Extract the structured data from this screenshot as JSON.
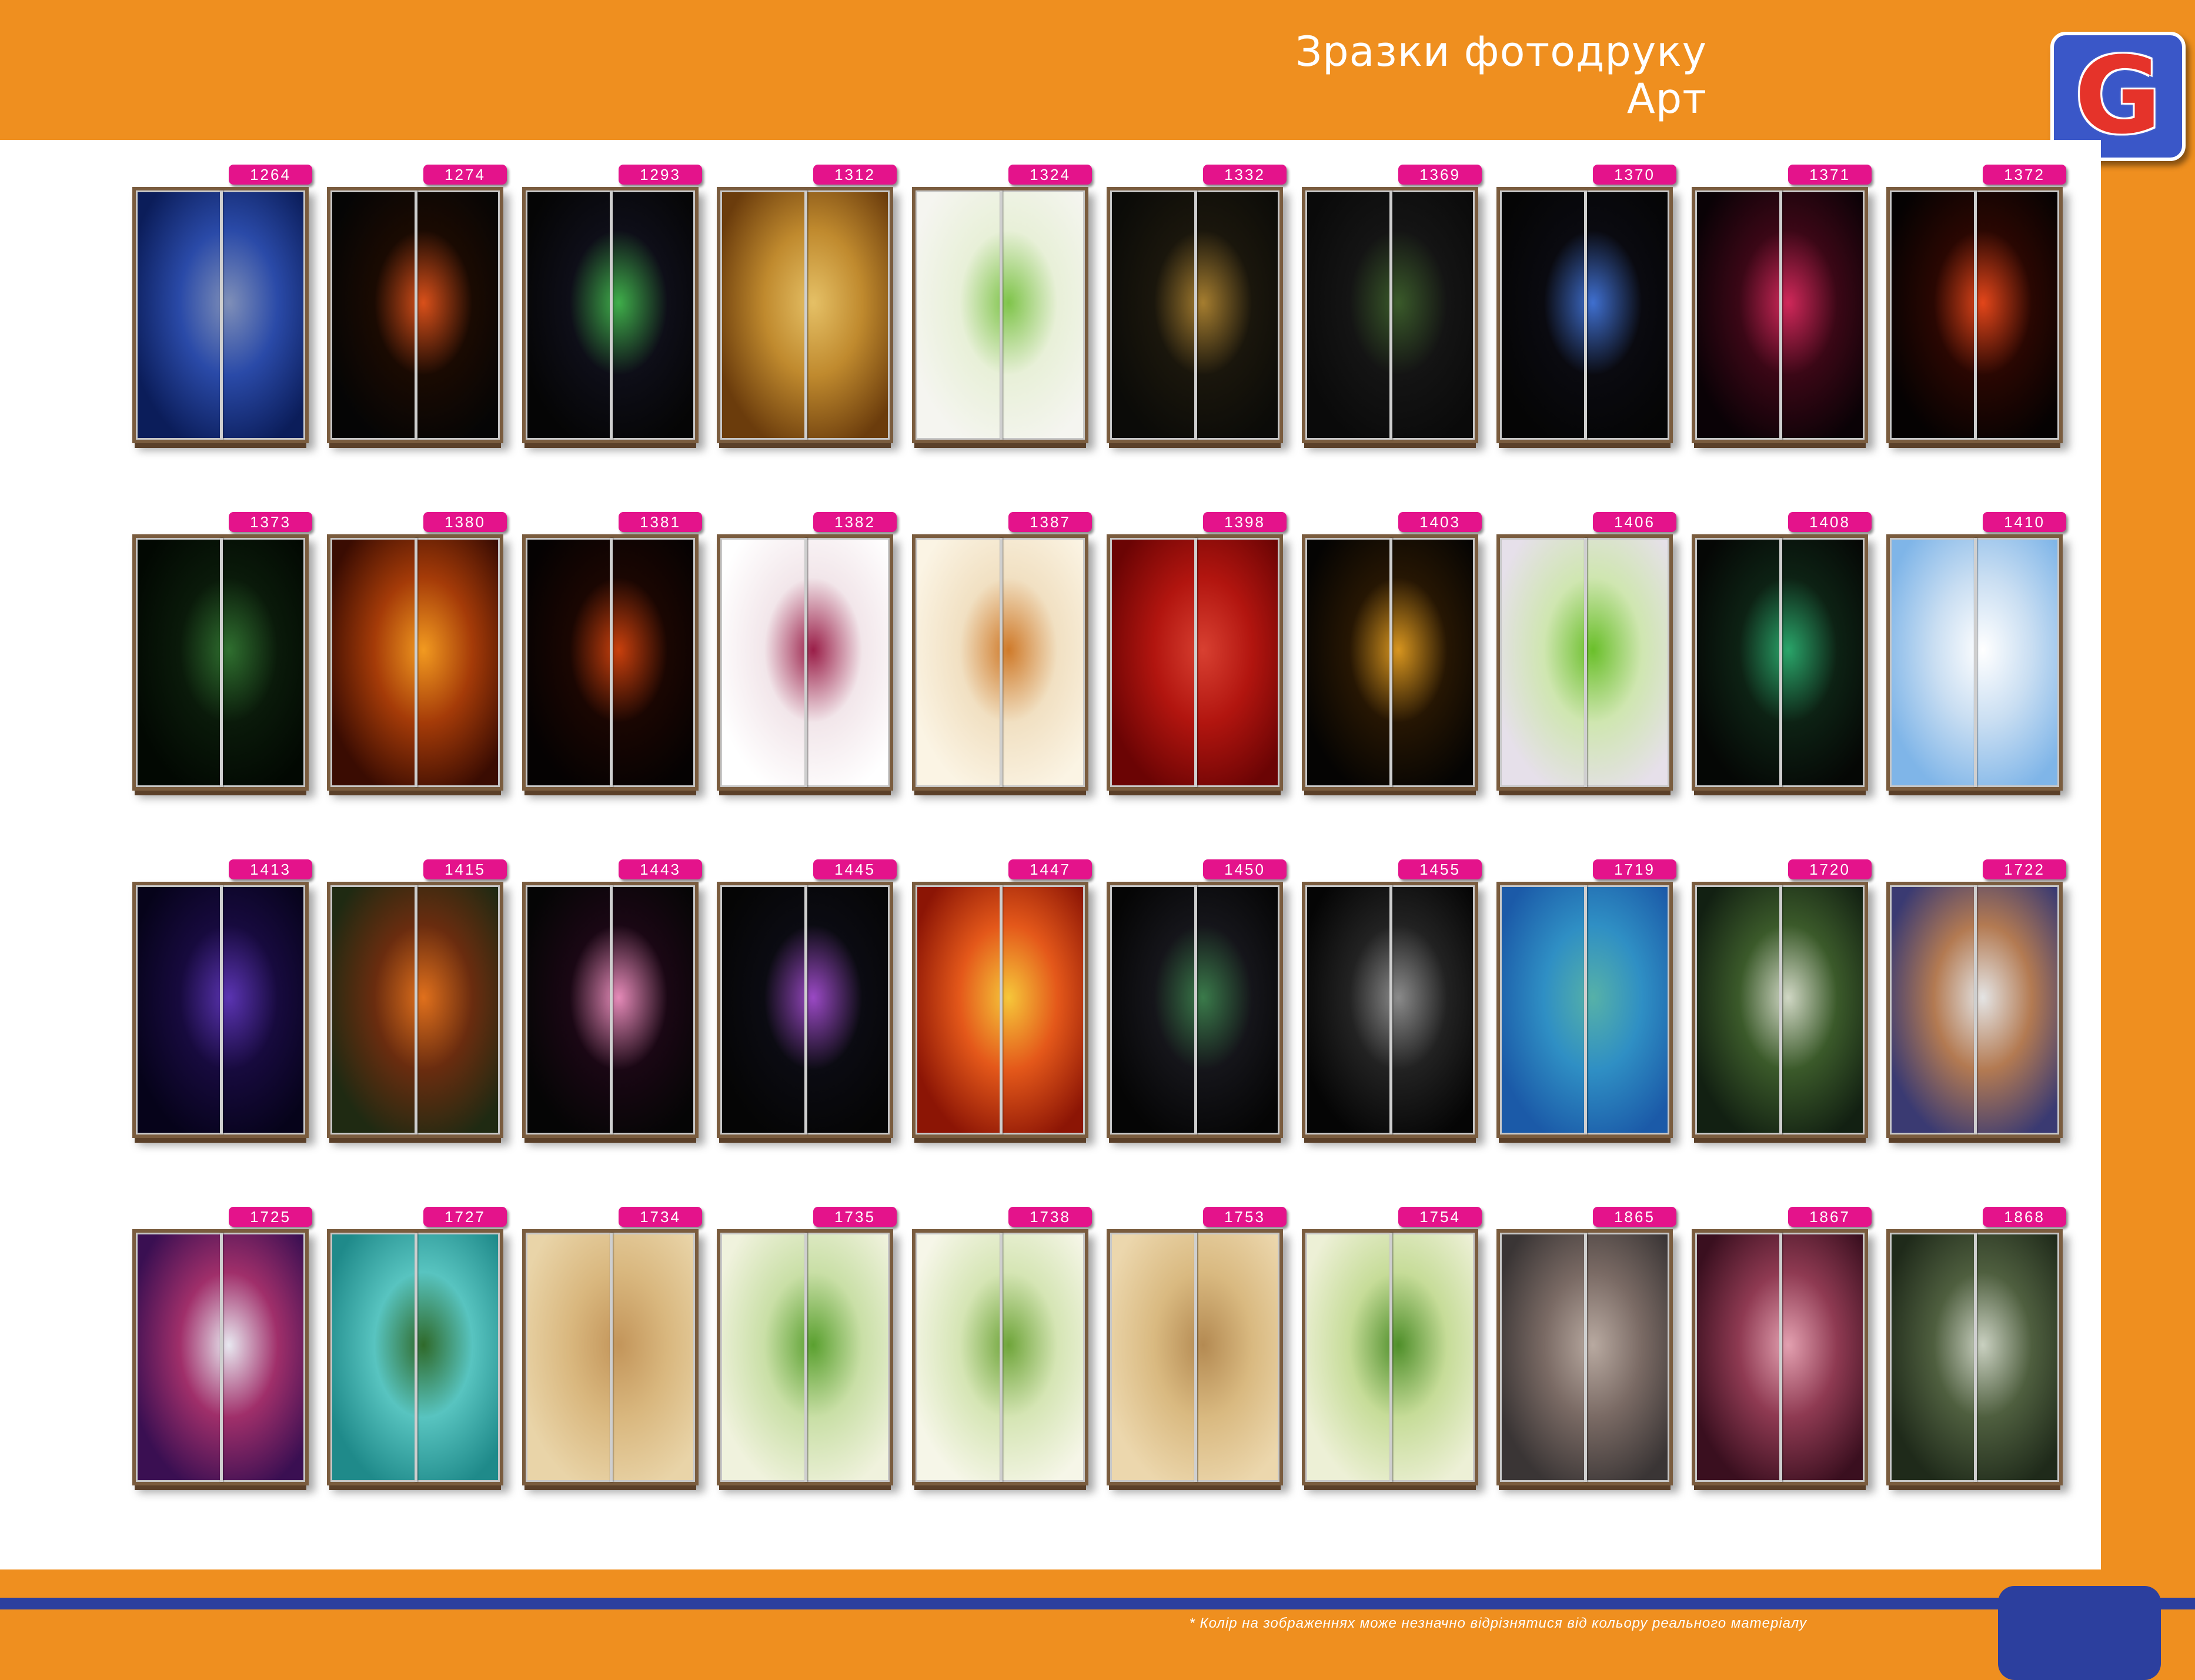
{
  "header": {
    "title_line1": "Зразки фотодруку",
    "title_line2": "Арт"
  },
  "logo": {
    "letter": "G",
    "color": "#e5332a",
    "background": "#3a57c8"
  },
  "colors": {
    "orange": "#ef8f1f",
    "blue": "#2c3f9e",
    "tag_pink": "#e4138b",
    "frame": "#7a5c3e"
  },
  "footnote": "* Колір на зображеннях може незначно відрізнятися від кольору реального матеріалу",
  "catalog": [
    {
      "code": "1264",
      "colors": [
        "#0b1d5a",
        "#2a4aa8",
        "#7f8fb8"
      ]
    },
    {
      "code": "1274",
      "colors": [
        "#050505",
        "#1a0a02",
        "#d9501a"
      ]
    },
    {
      "code": "1293",
      "colors": [
        "#050505",
        "#0e0e18",
        "#3fae4a"
      ]
    },
    {
      "code": "1312",
      "colors": [
        "#6b3c0c",
        "#c08a2e",
        "#e5c066"
      ]
    },
    {
      "code": "1324",
      "colors": [
        "#f5f5f0",
        "#e8f0d8",
        "#7fc44a"
      ]
    },
    {
      "code": "1332",
      "colors": [
        "#0b0b08",
        "#1a160c",
        "#a57d2f"
      ]
    },
    {
      "code": "1369",
      "colors": [
        "#0a0a0a",
        "#141414",
        "#3a5a2a"
      ]
    },
    {
      "code": "1370",
      "colors": [
        "#050505",
        "#0a0a10",
        "#3f6fcf"
      ]
    },
    {
      "code": "1371",
      "colors": [
        "#0a0206",
        "#3b0716",
        "#d0285a"
      ]
    },
    {
      "code": "1372",
      "colors": [
        "#050202",
        "#2a0702",
        "#e3461a"
      ]
    },
    {
      "code": "1373",
      "colors": [
        "#020802",
        "#0a1a0a",
        "#2f6f2f"
      ]
    },
    {
      "code": "1380",
      "colors": [
        "#3a0c02",
        "#a53b08",
        "#f29a20"
      ]
    },
    {
      "code": "1381",
      "colors": [
        "#050202",
        "#1a0602",
        "#c9400d"
      ]
    },
    {
      "code": "1382",
      "colors": [
        "#ffffff",
        "#f2e6ea",
        "#9a1e48"
      ]
    },
    {
      "code": "1387",
      "colors": [
        "#fbf4e4",
        "#f1e0c2",
        "#cf7a2a"
      ]
    },
    {
      "code": "1398",
      "colors": [
        "#6b0404",
        "#b2150f",
        "#d84031"
      ]
    },
    {
      "code": "1403",
      "colors": [
        "#050403",
        "#261603",
        "#d7951f"
      ]
    },
    {
      "code": "1406",
      "colors": [
        "#e6e0ea",
        "#cfe6b0",
        "#6abf2a"
      ]
    },
    {
      "code": "1408",
      "colors": [
        "#050705",
        "#0d2214",
        "#2aa56a"
      ]
    },
    {
      "code": "1410",
      "colors": [
        "#7fb5e8",
        "#c9def2",
        "#ffffff"
      ]
    },
    {
      "code": "1413",
      "colors": [
        "#06031a",
        "#170a3e",
        "#5b34b2"
      ]
    },
    {
      "code": "1415",
      "colors": [
        "#1f2a12",
        "#6a2c0f",
        "#e0701c"
      ]
    },
    {
      "code": "1443",
      "colors": [
        "#050505",
        "#1a0714",
        "#e58ab8"
      ]
    },
    {
      "code": "1445",
      "colors": [
        "#050505",
        "#0b0b12",
        "#9a49c4"
      ]
    },
    {
      "code": "1447",
      "colors": [
        "#8c1505",
        "#e4581a",
        "#f6c73a"
      ]
    },
    {
      "code": "1450",
      "colors": [
        "#050505",
        "#15151a",
        "#3a7a4a"
      ]
    },
    {
      "code": "1455",
      "colors": [
        "#050505",
        "#222222",
        "#8a8a8a"
      ]
    },
    {
      "code": "1719",
      "colors": [
        "#1b5aa8",
        "#2f8fc4",
        "#56b1a8"
      ]
    },
    {
      "code": "1720",
      "colors": [
        "#122012",
        "#3b5a2a",
        "#d0d7c4"
      ]
    },
    {
      "code": "1722",
      "colors": [
        "#3a3a72",
        "#b37a52",
        "#e4e4e4"
      ]
    },
    {
      "code": "1725",
      "colors": [
        "#3a0f52",
        "#a02f6a",
        "#e8e8f0"
      ]
    },
    {
      "code": "1727",
      "colors": [
        "#1f8a8a",
        "#58c4c0",
        "#2f6a2a"
      ]
    },
    {
      "code": "1734",
      "colors": [
        "#e9d4a8",
        "#d9b77e",
        "#c3955a"
      ]
    },
    {
      "code": "1735",
      "colors": [
        "#f0f2dd",
        "#c9dfa6",
        "#5aa02f"
      ]
    },
    {
      "code": "1738",
      "colors": [
        "#f6f6e8",
        "#d5e5b4",
        "#6fa53a"
      ]
    },
    {
      "code": "1753",
      "colors": [
        "#ecd7ad",
        "#d9b980",
        "#b48a52"
      ]
    },
    {
      "code": "1754",
      "colors": [
        "#edf0d6",
        "#c6dc98",
        "#4f8f2a"
      ]
    },
    {
      "code": "1865",
      "colors": [
        "#3a3535",
        "#7a6a64",
        "#b8a9a0"
      ]
    },
    {
      "code": "1867",
      "colors": [
        "#3a0f1f",
        "#8f3a52",
        "#e3a0b0"
      ]
    },
    {
      "code": "1868",
      "colors": [
        "#1f2a1a",
        "#4f5f3f",
        "#c9d0c0"
      ]
    }
  ]
}
